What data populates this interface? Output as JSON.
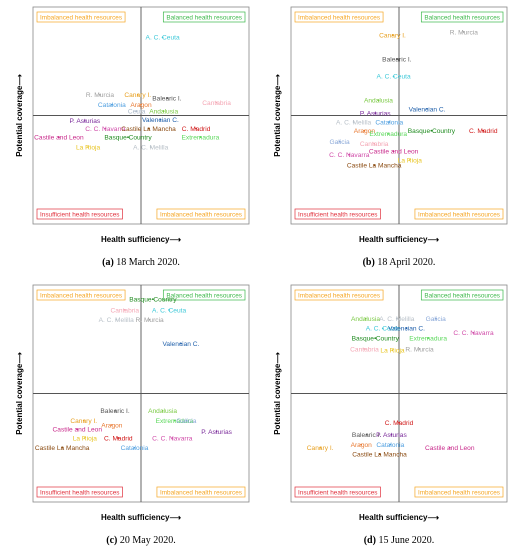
{
  "axis": {
    "xlabel": "Health sufficiency⟶",
    "ylabel": "Potential coverage⟶"
  },
  "quadrants": {
    "top_left": "Imbalanced health resources",
    "top_right": "Balanced health resources",
    "bottom_left": "Insufficient health resources",
    "bottom_right": "Imbalanced health resources"
  },
  "colors": {
    "imbalanced": "#f5a623",
    "balanced": "#3cb84a",
    "insufficient": "#e0303c",
    "axis": "#555555",
    "frame": "#888888"
  },
  "chart_data": [
    {
      "type": "scatter",
      "panel": "(a)",
      "caption": "18 March 2020.",
      "xlim": [
        -1,
        1
      ],
      "ylim": [
        -1,
        1
      ],
      "points": [
        {
          "name": "A. C. Ceuta",
          "x": 0.2,
          "y": 0.72,
          "color": "#3cc8d8"
        },
        {
          "name": "R. Murcia",
          "x": -0.38,
          "y": 0.19,
          "color": "#a0a0a0"
        },
        {
          "name": "Canary I.",
          "x": -0.03,
          "y": 0.19,
          "color": "#e8a020"
        },
        {
          "name": "Balearic I.",
          "x": 0.24,
          "y": 0.16,
          "color": "#555555"
        },
        {
          "name": "Cantabria",
          "x": 0.7,
          "y": 0.12,
          "color": "#f4a6b4"
        },
        {
          "name": "Catalonia",
          "x": -0.27,
          "y": 0.1,
          "color": "#4f9fe0"
        },
        {
          "name": "Aragon",
          "x": 0.0,
          "y": 0.1,
          "color": "#e87830"
        },
        {
          "name": "Ceuta",
          "x": -0.04,
          "y": 0.04,
          "color": "#aab8c8"
        },
        {
          "name": "Andalusia",
          "x": 0.21,
          "y": 0.04,
          "color": "#7ac943"
        },
        {
          "name": "Valencian C.",
          "x": 0.18,
          "y": -0.04,
          "color": "#1f5faa"
        },
        {
          "name": "P. Asturias",
          "x": -0.52,
          "y": -0.05,
          "color": "#7a2a9a"
        },
        {
          "name": "C. C. Navarra",
          "x": -0.33,
          "y": -0.12,
          "color": "#d04aa8"
        },
        {
          "name": "Castile La Mancha",
          "x": 0.07,
          "y": -0.12,
          "color": "#8a4a10"
        },
        {
          "name": "C. Madrid",
          "x": 0.51,
          "y": -0.12,
          "color": "#d01818"
        },
        {
          "name": "Castile and Leon",
          "x": -0.76,
          "y": -0.2,
          "color": "#c8288a"
        },
        {
          "name": "Basque Country",
          "x": -0.12,
          "y": -0.2,
          "color": "#1e8a1e"
        },
        {
          "name": "Extremadura",
          "x": 0.55,
          "y": -0.2,
          "color": "#5ad85a"
        },
        {
          "name": "La Rioja",
          "x": -0.49,
          "y": -0.29,
          "color": "#e8c420"
        },
        {
          "name": "A. C. Melilla",
          "x": 0.09,
          "y": -0.29,
          "color": "#b8c0c8"
        }
      ]
    },
    {
      "type": "scatter",
      "panel": "(b)",
      "caption": "18 April 2020.",
      "xlim": [
        -1,
        1
      ],
      "ylim": [
        -1,
        1
      ],
      "points": [
        {
          "name": "Canary I.",
          "x": -0.06,
          "y": 0.74,
          "color": "#e8a020"
        },
        {
          "name": "R. Murcia",
          "x": 0.6,
          "y": 0.77,
          "color": "#a0a0a0"
        },
        {
          "name": "Balearic I.",
          "x": -0.02,
          "y": 0.52,
          "color": "#555555"
        },
        {
          "name": "A. C. Ceuta",
          "x": -0.05,
          "y": 0.36,
          "color": "#3cc8d8"
        },
        {
          "name": "Andalusia",
          "x": -0.19,
          "y": 0.14,
          "color": "#7ac943"
        },
        {
          "name": "Valencian C.",
          "x": 0.26,
          "y": 0.06,
          "color": "#1f5faa"
        },
        {
          "name": "P. Asturias",
          "x": -0.22,
          "y": 0.02,
          "color": "#7a2a9a"
        },
        {
          "name": "A. C. Melilla",
          "x": -0.42,
          "y": -0.06,
          "color": "#b8c0c8"
        },
        {
          "name": "Catalonia",
          "x": -0.09,
          "y": -0.06,
          "color": "#4f9fe0"
        },
        {
          "name": "Aragon",
          "x": -0.32,
          "y": -0.14,
          "color": "#e87830"
        },
        {
          "name": "Extremadura",
          "x": -0.1,
          "y": -0.17,
          "color": "#5ad85a"
        },
        {
          "name": "Basque Country",
          "x": 0.3,
          "y": -0.14,
          "color": "#1e8a1e"
        },
        {
          "name": "C. Madrid",
          "x": 0.78,
          "y": -0.14,
          "color": "#d01818"
        },
        {
          "name": "Galicia",
          "x": -0.55,
          "y": -0.24,
          "color": "#8aa8d8"
        },
        {
          "name": "Cantabria",
          "x": -0.23,
          "y": -0.26,
          "color": "#f4a6b4"
        },
        {
          "name": "C. C. Navarra",
          "x": -0.46,
          "y": -0.36,
          "color": "#d04aa8"
        },
        {
          "name": "Castile and Leon",
          "x": -0.05,
          "y": -0.33,
          "color": "#c8288a"
        },
        {
          "name": "La Rioja",
          "x": 0.1,
          "y": -0.41,
          "color": "#e8c420"
        },
        {
          "name": "Castile La Mancha",
          "x": -0.23,
          "y": -0.46,
          "color": "#8a4a10"
        }
      ]
    },
    {
      "type": "scatter",
      "panel": "(c)",
      "caption": "20 May 2020.",
      "xlim": [
        -1,
        1
      ],
      "ylim": [
        -1,
        1
      ],
      "points": [
        {
          "name": "Basque Country",
          "x": 0.11,
          "y": 0.87,
          "color": "#1e8a1e"
        },
        {
          "name": "Cantabria",
          "x": -0.15,
          "y": 0.77,
          "color": "#f4a6b4"
        },
        {
          "name": "A. C. Ceuta",
          "x": 0.26,
          "y": 0.77,
          "color": "#3cc8d8"
        },
        {
          "name": "A. C. Melilla",
          "x": -0.23,
          "y": 0.68,
          "color": "#b8c0c8"
        },
        {
          "name": "R. Murcia",
          "x": 0.08,
          "y": 0.68,
          "color": "#a0a0a0"
        },
        {
          "name": "Valencian C.",
          "x": 0.37,
          "y": 0.46,
          "color": "#1f5faa"
        },
        {
          "name": "Balearic I.",
          "x": -0.24,
          "y": -0.16,
          "color": "#555555"
        },
        {
          "name": "Andalusia",
          "x": 0.2,
          "y": -0.16,
          "color": "#7ac943"
        },
        {
          "name": "Canary I.",
          "x": -0.53,
          "y": -0.25,
          "color": "#e8a020"
        },
        {
          "name": "Extremadura",
          "x": 0.31,
          "y": -0.25,
          "color": "#5ad85a"
        },
        {
          "name": "Galicia",
          "x": 0.42,
          "y": -0.25,
          "color": "#8aa8d8"
        },
        {
          "name": "Aragon",
          "x": -0.27,
          "y": -0.29,
          "color": "#e87830"
        },
        {
          "name": "Castile and Leon",
          "x": -0.59,
          "y": -0.33,
          "color": "#c8288a"
        },
        {
          "name": "P. Asturias",
          "x": 0.7,
          "y": -0.35,
          "color": "#7a2a9a"
        },
        {
          "name": "La Rioja",
          "x": -0.52,
          "y": -0.41,
          "color": "#e8c420"
        },
        {
          "name": "C. Madrid",
          "x": -0.21,
          "y": -0.41,
          "color": "#d01818"
        },
        {
          "name": "C. C. Navarra",
          "x": 0.29,
          "y": -0.41,
          "color": "#d04aa8"
        },
        {
          "name": "Catalonia",
          "x": -0.06,
          "y": -0.5,
          "color": "#4f9fe0"
        },
        {
          "name": "Castile La Mancha",
          "x": -0.73,
          "y": -0.5,
          "color": "#8a4a10"
        }
      ]
    },
    {
      "type": "scatter",
      "panel": "(d)",
      "caption": "15 June 2020.",
      "xlim": [
        -1,
        1
      ],
      "ylim": [
        -1,
        1
      ],
      "points": [
        {
          "name": "Andalusia",
          "x": -0.31,
          "y": 0.69,
          "color": "#7ac943"
        },
        {
          "name": "A. C. Melilla",
          "x": -0.02,
          "y": 0.69,
          "color": "#b8c0c8"
        },
        {
          "name": "Galicia",
          "x": 0.34,
          "y": 0.69,
          "color": "#8aa8d8"
        },
        {
          "name": "A. C. Ceuta",
          "x": -0.15,
          "y": 0.6,
          "color": "#3cc8d8"
        },
        {
          "name": "Valencian C.",
          "x": 0.07,
          "y": 0.6,
          "color": "#1f5faa"
        },
        {
          "name": "C. C. Navarra",
          "x": 0.69,
          "y": 0.56,
          "color": "#d04aa8"
        },
        {
          "name": "Basque Country",
          "x": -0.22,
          "y": 0.51,
          "color": "#1e8a1e"
        },
        {
          "name": "Extremadura",
          "x": 0.27,
          "y": 0.51,
          "color": "#5ad85a"
        },
        {
          "name": "Cantabria",
          "x": -0.32,
          "y": 0.41,
          "color": "#f4a6b4"
        },
        {
          "name": "La Rioja",
          "x": -0.06,
          "y": 0.4,
          "color": "#e8c420"
        },
        {
          "name": "R. Murcia",
          "x": 0.19,
          "y": 0.41,
          "color": "#a0a0a0"
        },
        {
          "name": "C. Madrid",
          "x": 0.0,
          "y": -0.27,
          "color": "#d01818"
        },
        {
          "name": "Balearic I.",
          "x": -0.3,
          "y": -0.38,
          "color": "#555555"
        },
        {
          "name": "P. Asturias",
          "x": -0.07,
          "y": -0.38,
          "color": "#7a2a9a"
        },
        {
          "name": "Aragon",
          "x": -0.35,
          "y": -0.47,
          "color": "#e87830"
        },
        {
          "name": "Catalonia",
          "x": -0.08,
          "y": -0.47,
          "color": "#4f9fe0"
        },
        {
          "name": "Canary I.",
          "x": -0.73,
          "y": -0.5,
          "color": "#e8a020"
        },
        {
          "name": "Castile and Leon",
          "x": 0.47,
          "y": -0.5,
          "color": "#c8288a"
        },
        {
          "name": "Castile La Mancha",
          "x": -0.18,
          "y": -0.56,
          "color": "#8a4a10"
        }
      ]
    }
  ]
}
